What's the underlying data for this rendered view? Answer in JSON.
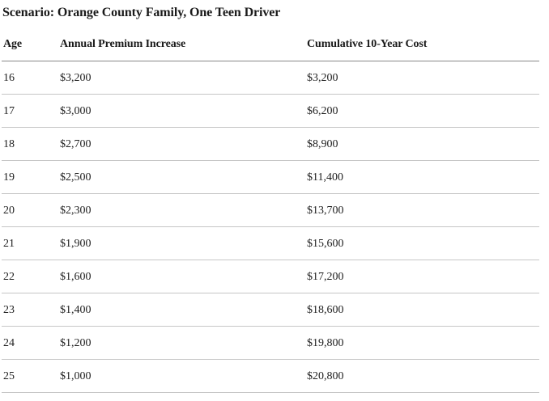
{
  "title": "Scenario: Orange County Family, One Teen Driver",
  "table": {
    "columns": [
      "Age",
      "Annual Premium Increase",
      "Cumulative 10-Year Cost"
    ],
    "rows": [
      [
        "16",
        "$3,200",
        "$3,200"
      ],
      [
        "17",
        "$3,000",
        "$6,200"
      ],
      [
        "18",
        "$2,700",
        "$8,900"
      ],
      [
        "19",
        "$2,500",
        "$11,400"
      ],
      [
        "20",
        "$2,300",
        "$13,700"
      ],
      [
        "21",
        "$1,900",
        "$15,600"
      ],
      [
        "22",
        "$1,600",
        "$17,200"
      ],
      [
        "23",
        "$1,400",
        "$18,600"
      ],
      [
        "24",
        "$1,200",
        "$19,800"
      ],
      [
        "25",
        "$1,000",
        "$20,800"
      ]
    ]
  },
  "chart_data": {
    "type": "table",
    "title": "Scenario: Orange County Family, One Teen Driver",
    "columns": [
      "Age",
      "Annual Premium Increase",
      "Cumulative 10-Year Cost"
    ],
    "x": [
      16,
      17,
      18,
      19,
      20,
      21,
      22,
      23,
      24,
      25
    ],
    "series": [
      {
        "name": "Annual Premium Increase",
        "values": [
          3200,
          3000,
          2700,
          2500,
          2300,
          1900,
          1600,
          1400,
          1200,
          1000
        ]
      },
      {
        "name": "Cumulative 10-Year Cost",
        "values": [
          3200,
          6200,
          8900,
          11400,
          13700,
          15600,
          17200,
          18600,
          19800,
          20800
        ]
      }
    ],
    "layout": {
      "grid": "horizontal-rules",
      "legend": "none"
    }
  },
  "colors": {
    "background": "#ffffff",
    "text": "#1a1a1a",
    "body_text": "#212121",
    "header_rule": "#888888",
    "row_rule": "#c6c6c6"
  }
}
